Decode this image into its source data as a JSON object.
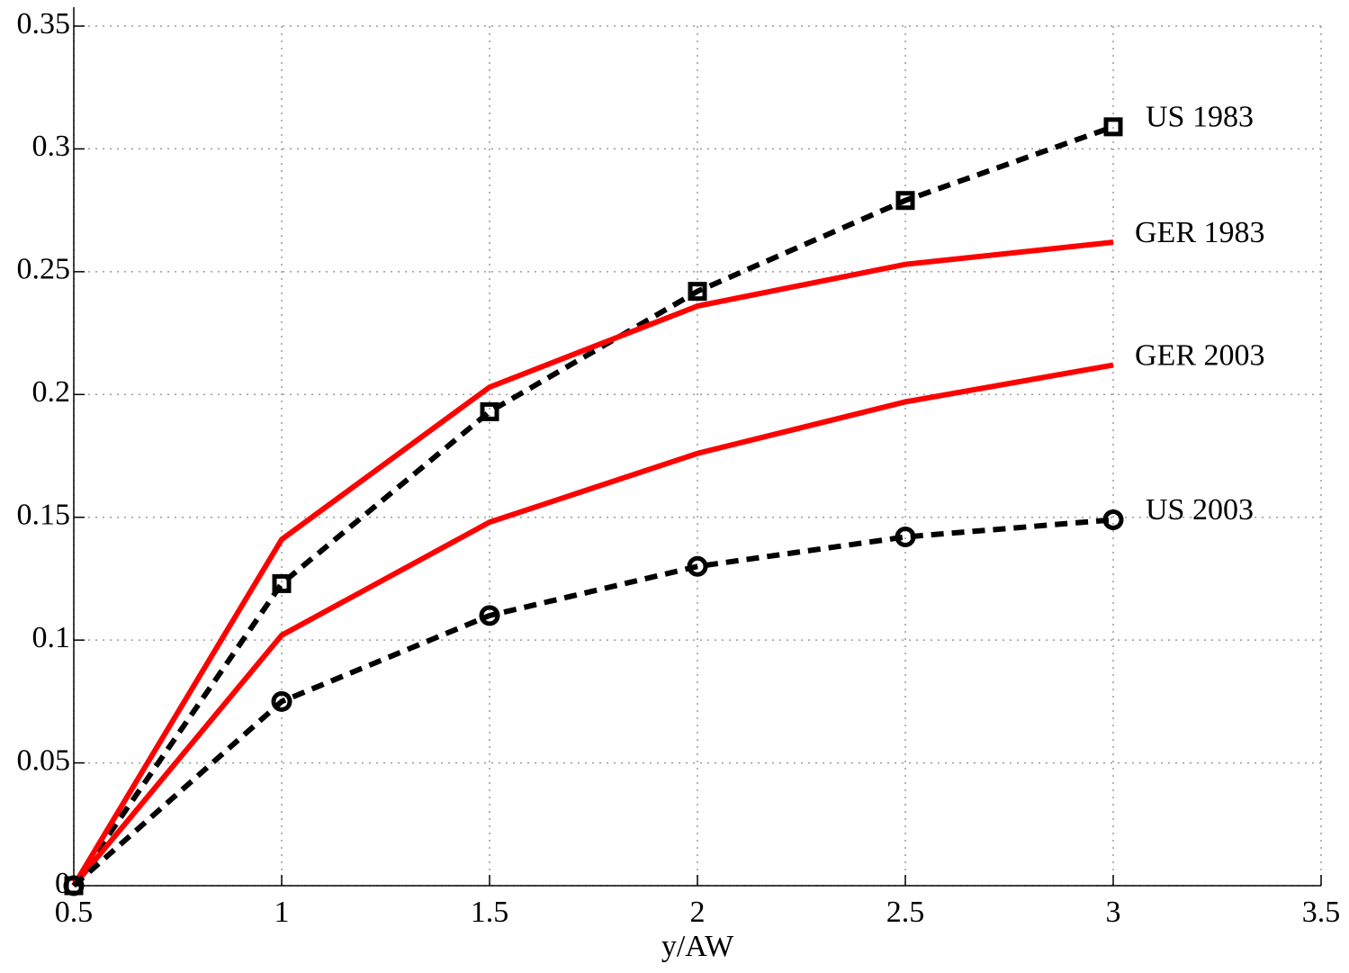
{
  "chart_data": {
    "type": "line",
    "xlabel": "y/AW",
    "x": [
      0.5,
      1,
      1.5,
      2,
      2.5,
      3
    ],
    "series": [
      {
        "name": "US 1983",
        "color": "#000000",
        "dashed": true,
        "marker": "square",
        "values": [
          0,
          0.123,
          0.193,
          0.242,
          0.279,
          0.309
        ]
      },
      {
        "name": "GER 1983",
        "color": "#ff0000",
        "dashed": false,
        "marker": null,
        "values": [
          0,
          0.141,
          0.203,
          0.236,
          0.253,
          0.262
        ]
      },
      {
        "name": "GER 2003",
        "color": "#ff0000",
        "dashed": false,
        "marker": null,
        "values": [
          0,
          0.102,
          0.148,
          0.176,
          0.197,
          0.212
        ]
      },
      {
        "name": "US 2003",
        "color": "#000000",
        "dashed": true,
        "marker": "circle",
        "values": [
          0,
          0.075,
          0.11,
          0.13,
          0.142,
          0.149
        ]
      }
    ],
    "xlim": [
      0.5,
      3.5
    ],
    "xticks": [
      0.5,
      1,
      1.5,
      2,
      2.5,
      3,
      3.5
    ],
    "ylim": [
      0,
      0.35
    ],
    "yticks": [
      0,
      0.05,
      0.1,
      0.15,
      0.2,
      0.25,
      0.3,
      0.35
    ],
    "grid": true
  }
}
